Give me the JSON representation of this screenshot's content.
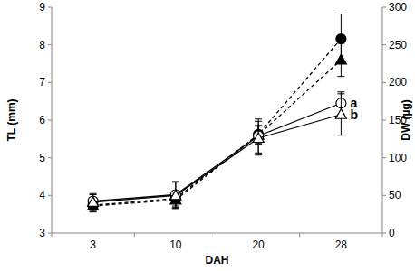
{
  "chart_data": {
    "type": "line",
    "x_label": "DAH",
    "y_label": "TL (mm)",
    "y2_label": "DW (µg)",
    "categories": [
      "3",
      "10",
      "20",
      "28"
    ],
    "ylim": [
      3,
      9
    ],
    "yticks": [
      3,
      4,
      5,
      6,
      7,
      8,
      9
    ],
    "y2lim": [
      0,
      300
    ],
    "y2ticks": [
      0,
      50,
      100,
      150,
      200,
      250,
      300
    ],
    "series": [
      {
        "color": "#000000",
        "marker": "circle-open",
        "line_style": "solid",
        "values": [
          3.85,
          4.02,
          5.58,
          6.45
        ],
        "errors": [
          0.2,
          0.35,
          0.45,
          0.3
        ],
        "label": "a"
      },
      {
        "color": "#000000",
        "marker": "triangle-open",
        "line_style": "solid",
        "values": [
          3.82,
          4.0,
          5.52,
          6.15
        ],
        "errors": [
          0.2,
          0.35,
          0.45,
          0.55
        ],
        "label": "b"
      },
      {
        "color": "#000000",
        "marker": "circle",
        "line_style": "dashed",
        "axis": "y2",
        "values": [
          37,
          46,
          131,
          258
        ],
        "errors": [
          8,
          10,
          12,
          33
        ]
      },
      {
        "color": "#000000",
        "marker": "triangle",
        "line_style": "dashed",
        "axis": "y2",
        "values": [
          36,
          44,
          130,
          230
        ],
        "errors": [
          8,
          10,
          12,
          22
        ]
      }
    ]
  }
}
